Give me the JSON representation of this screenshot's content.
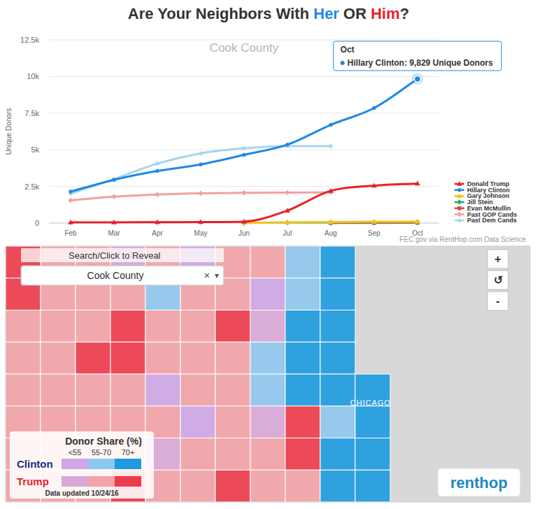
{
  "chart_data": {
    "type": "line",
    "title_parts": [
      {
        "text": "Are Your Neighbors With ",
        "color": "#333333"
      },
      {
        "text": "Her",
        "color": "#1f88e5"
      },
      {
        "text": " OR ",
        "color": "#333333"
      },
      {
        "text": "Him",
        "color": "#e8202a"
      },
      {
        "text": "?",
        "color": "#333333"
      }
    ],
    "subtitle": "Cook County",
    "y_label": "Unique Donors",
    "source": "FEC.gov via RentHop.com Data Science",
    "categories": [
      "Feb",
      "Mar",
      "Apr",
      "May",
      "Jun",
      "Jul",
      "Aug",
      "Sep",
      "Oct"
    ],
    "series": [
      {
        "name": "Donald Trump",
        "color": "#e8202a",
        "marker": "triangle",
        "values": [
          50,
          50,
          60,
          70,
          100,
          850,
          2200,
          2550,
          2700
        ]
      },
      {
        "name": "Hillary Clinton",
        "color": "#1f88e5",
        "marker": "circle",
        "values": [
          2150,
          2950,
          3550,
          4000,
          4650,
          5350,
          6700,
          7850,
          9829
        ]
      },
      {
        "name": "Gary Johnson",
        "color": "#f5c518",
        "marker": "triangle",
        "values": [
          null,
          null,
          null,
          null,
          20,
          40,
          70,
          90,
          100
        ]
      },
      {
        "name": "Jill Stein",
        "color": "#2aa876",
        "marker": "diamond",
        "values": [
          null,
          null,
          null,
          null,
          10,
          30,
          50,
          60,
          70
        ]
      },
      {
        "name": "Evan McMullin",
        "color": "#d44a3a",
        "marker": "square",
        "values": [
          null,
          null,
          null,
          null,
          null,
          null,
          5,
          10,
          20
        ]
      },
      {
        "name": "Past GOP Cands",
        "color": "#f4a0a0",
        "marker": "diamond",
        "values": [
          1550,
          1800,
          1950,
          2030,
          2060,
          2080,
          2090,
          null,
          null
        ]
      },
      {
        "name": "Past Dem Cands",
        "color": "#a8d4f0",
        "marker": "circle",
        "values": [
          2000,
          3000,
          4050,
          4750,
          5100,
          5250,
          5250,
          null,
          null
        ]
      }
    ],
    "ylim": [
      0,
      12500
    ],
    "yticks": [
      0,
      {
        "value": 2500,
        "label": "2.5k"
      },
      {
        "value": 5000,
        "label": "5k"
      },
      {
        "value": 7500,
        "label": "7.5k"
      },
      {
        "value": 10000,
        "label": "10k"
      },
      {
        "value": 12500,
        "label": "12.5k"
      }
    ],
    "grid": true,
    "legend": "right",
    "line_style": "smooth",
    "tooltip": {
      "title": "Oct",
      "text": "Hillary Clinton: 9,829 Unique Donors"
    }
  },
  "map": {
    "search_label": "Search/Click to Reveal",
    "search_value": "Cook County",
    "search_icons": [
      "×",
      "▾"
    ],
    "zoom_buttons": [
      "+",
      "↺",
      "-"
    ],
    "legend_title": "Donor Share (%)",
    "bin_labels": [
      "<55",
      "55-70",
      "70+"
    ],
    "bin_edges": [
      55,
      70
    ],
    "parties": [
      {
        "name": "Clinton",
        "color": "#1a2a8a",
        "colors": [
          "#cfa6e6",
          "#8fc8ee",
          "#1e9be0"
        ]
      },
      {
        "name": "Trump",
        "color": "#e8202a",
        "colors": [
          "#d9a8d8",
          "#f4a3a8",
          "#ee3b4b"
        ]
      }
    ],
    "updated": "Data updated 10/24/16",
    "logo": "renthop",
    "place_labels": [
      "CHICAGO"
    ],
    "cells": [
      [
        20,
        35,
        40,
        48,
        35,
        52,
        38,
        45,
        60,
        80,
        null,
        null,
        null,
        null,
        null
      ],
      [
        30,
        38,
        45,
        35,
        60,
        40,
        36,
        52,
        65,
        85,
        null,
        null,
        null,
        null,
        null
      ],
      [
        35,
        42,
        35,
        25,
        45,
        38,
        22,
        48,
        75,
        85,
        null,
        null,
        null,
        null,
        null
      ],
      [
        40,
        35,
        25,
        28,
        42,
        38,
        45,
        55,
        80,
        85,
        null,
        null,
        null,
        null,
        null
      ],
      [
        38,
        45,
        40,
        35,
        50,
        42,
        38,
        60,
        80,
        85,
        85,
        null,
        null,
        null,
        null
      ],
      [
        42,
        35,
        38,
        40,
        45,
        52,
        40,
        48,
        25,
        60,
        85,
        null,
        null,
        null,
        null
      ],
      [
        40,
        38,
        42,
        36,
        48,
        40,
        35,
        45,
        30,
        78,
        85,
        null,
        null,
        null,
        null
      ],
      [
        38,
        40,
        35,
        30,
        38,
        42,
        28,
        40,
        45,
        75,
        80,
        null,
        null,
        null,
        null
      ]
    ]
  }
}
